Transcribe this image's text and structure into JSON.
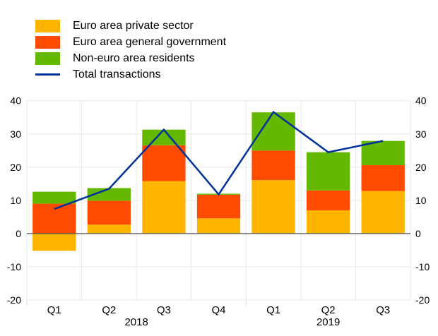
{
  "chart_data": {
    "type": "bar",
    "stacked": true,
    "title": "",
    "xlabel": "",
    "ylabel": "",
    "categories": [
      "Q1",
      "Q2",
      "Q3",
      "Q4",
      "Q1",
      "Q2",
      "Q3"
    ],
    "year_groups": [
      {
        "label": "2018",
        "start": 0,
        "end": 3
      },
      {
        "label": "2019",
        "start": 4,
        "end": 6
      }
    ],
    "ylim": [
      -20,
      40
    ],
    "yticks": [
      -20,
      -10,
      0,
      10,
      20,
      30,
      40
    ],
    "ytick_labels": [
      "-20",
      "-10",
      "0",
      "10",
      "20",
      "30",
      "40"
    ],
    "grid": true,
    "legend_position": "top-left",
    "series": [
      {
        "name": "Euro area private sector",
        "kind": "bar",
        "color": "#FFB400",
        "values": [
          -5.2,
          2.7,
          15.8,
          4.6,
          16.1,
          7.0,
          12.8
        ]
      },
      {
        "name": "Euro area general government",
        "kind": "bar",
        "color": "#FF4B00",
        "values": [
          9.0,
          7.2,
          10.8,
          7.1,
          8.9,
          6.0,
          7.8
        ]
      },
      {
        "name": "Non-euro area residents",
        "kind": "bar",
        "color": "#65B800",
        "values": [
          3.6,
          3.8,
          4.7,
          0.3,
          11.5,
          11.5,
          7.3
        ]
      },
      {
        "name": "Total transactions",
        "kind": "line",
        "color": "#003299",
        "values": [
          7.4,
          13.5,
          31.3,
          11.8,
          36.6,
          24.5,
          27.9
        ]
      }
    ]
  }
}
